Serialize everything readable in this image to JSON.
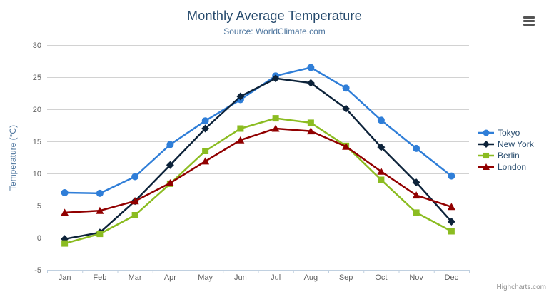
{
  "chart_data": {
    "type": "line",
    "title": "Monthly Average Temperature",
    "subtitle": "Source: WorldClimate.com",
    "ylabel": "Temperature (°C)",
    "xlabel": "",
    "ylim": [
      -5,
      30
    ],
    "ytick_step": 5,
    "grid": true,
    "legend_position": "right",
    "credits": "Highcharts.com",
    "categories": [
      "Jan",
      "Feb",
      "Mar",
      "Apr",
      "May",
      "Jun",
      "Jul",
      "Aug",
      "Sep",
      "Oct",
      "Nov",
      "Dec"
    ],
    "series": [
      {
        "name": "Tokyo",
        "color": "#2f7ed8",
        "marker": "circle",
        "values": [
          7.0,
          6.9,
          9.5,
          14.5,
          18.2,
          21.5,
          25.2,
          26.5,
          23.3,
          18.3,
          13.9,
          9.6
        ]
      },
      {
        "name": "New York",
        "color": "#0d233a",
        "marker": "diamond",
        "values": [
          -0.2,
          0.8,
          5.7,
          11.3,
          17.0,
          22.0,
          24.8,
          24.1,
          20.1,
          14.1,
          8.6,
          2.5
        ]
      },
      {
        "name": "Berlin",
        "color": "#8bbc21",
        "marker": "square",
        "values": [
          -0.9,
          0.6,
          3.5,
          8.4,
          13.5,
          17.0,
          18.6,
          17.9,
          14.3,
          9.0,
          3.9,
          1.0
        ]
      },
      {
        "name": "London",
        "color": "#910000",
        "marker": "triangle",
        "values": [
          3.9,
          4.2,
          5.7,
          8.5,
          11.9,
          15.2,
          17.0,
          16.6,
          14.2,
          10.3,
          6.6,
          4.8
        ]
      }
    ],
    "axis_colors": {
      "grid": "#d2d2d2",
      "axis_line": "#c0d0e0",
      "tick": "#c0d0e0",
      "label": "#606060"
    }
  }
}
